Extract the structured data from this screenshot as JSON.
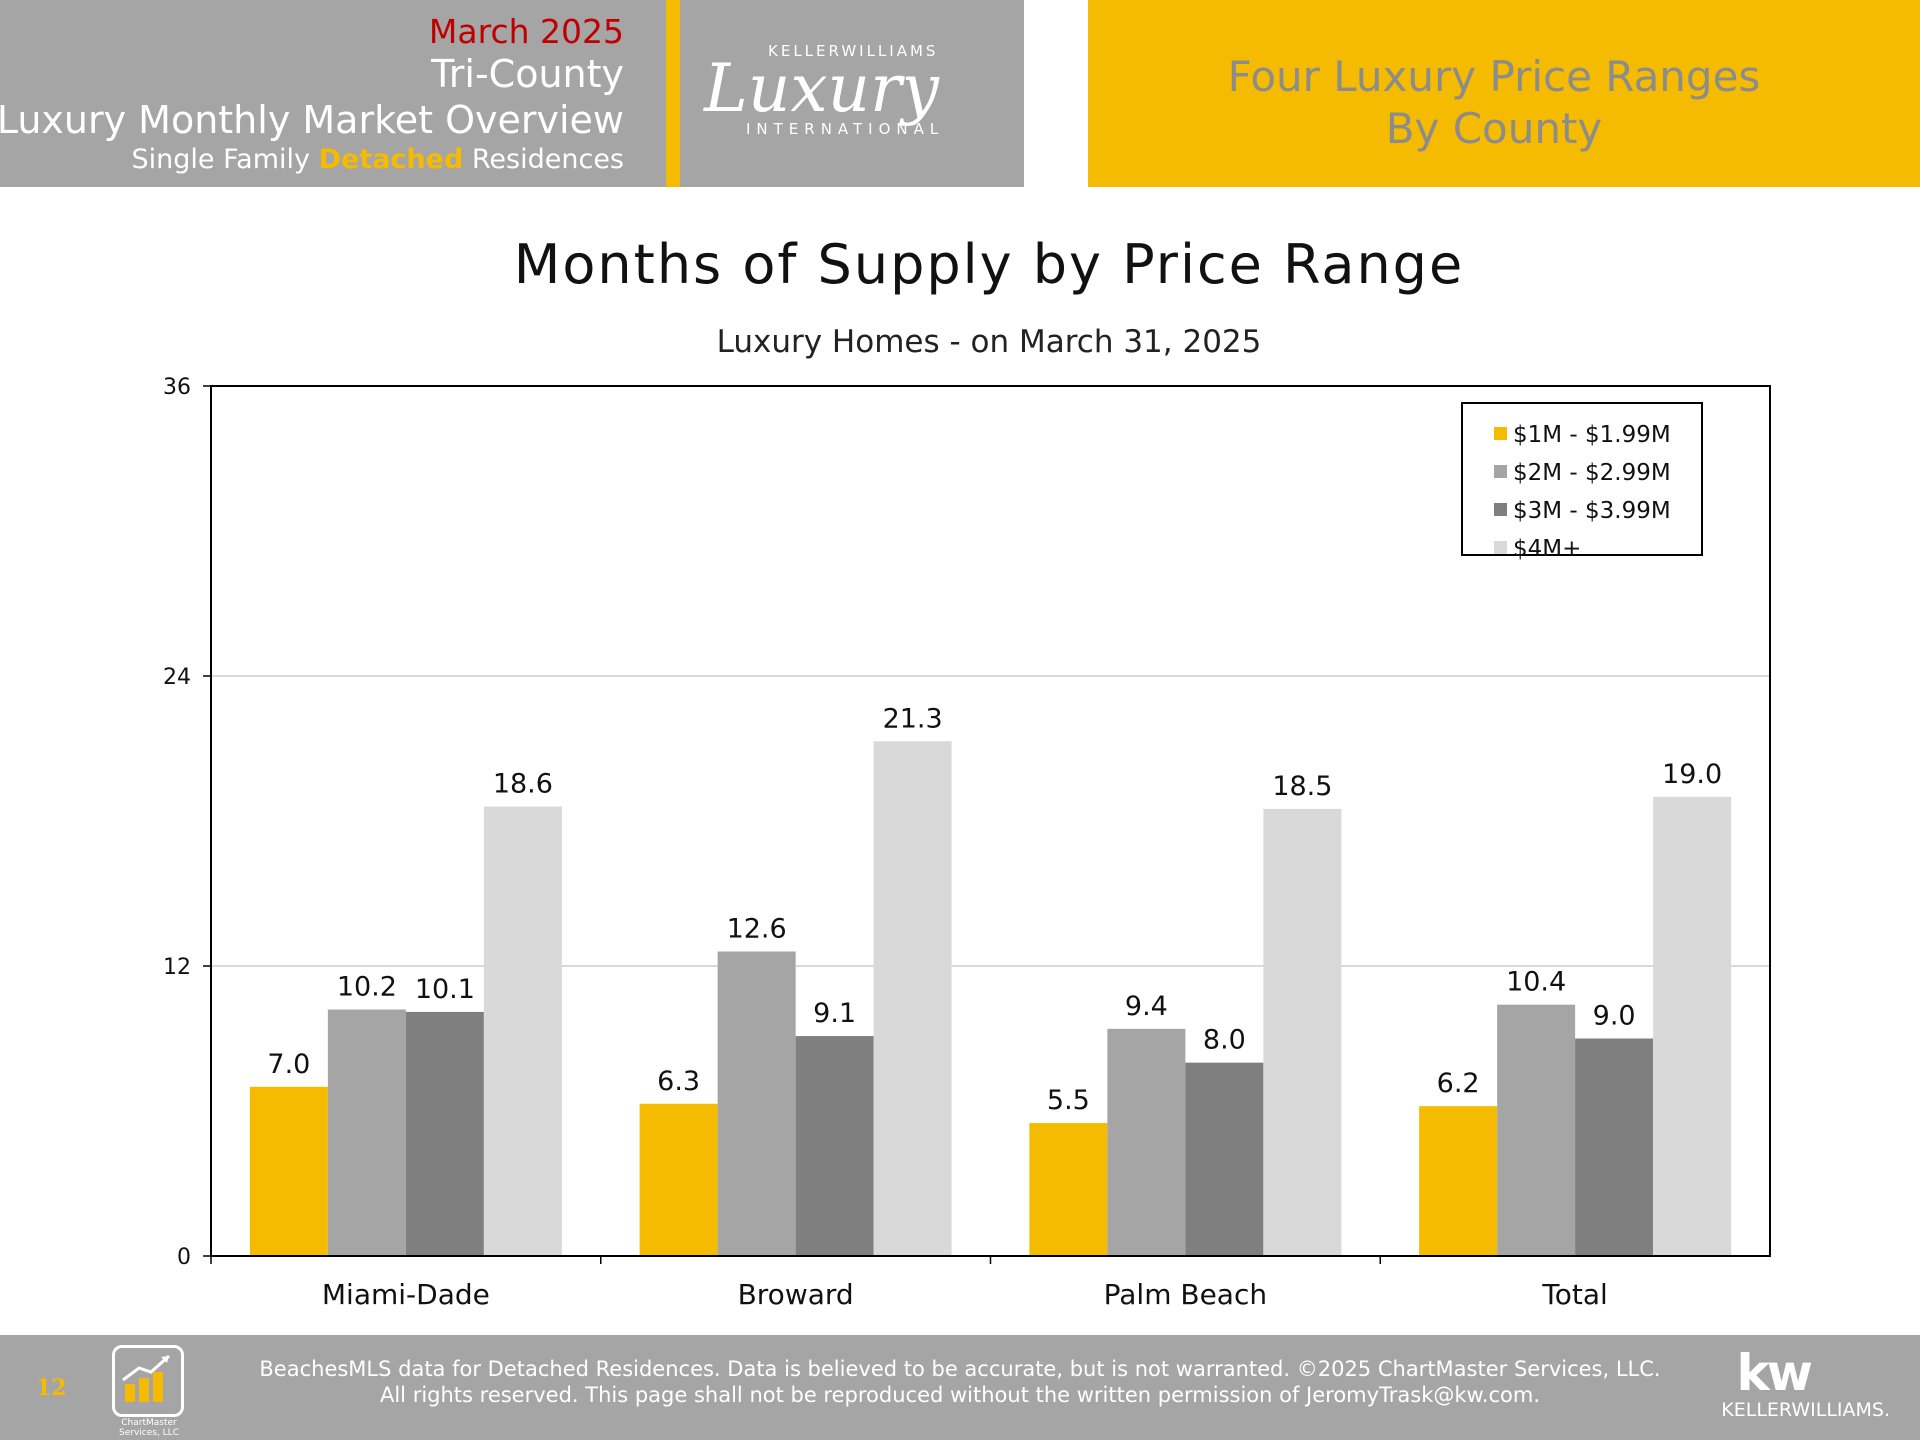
{
  "header": {
    "date": "March 2025",
    "region": "Tri-County",
    "title": "Luxury Monthly Market Overview",
    "subtitle_pre": "Single Family ",
    "subtitle_highlight": "Detached",
    "subtitle_post": " Residences",
    "right_line1": "Four Luxury Price Ranges",
    "right_line2": "By County"
  },
  "logo": {
    "brand": "KELLERWILLIAMS",
    "script": "Luxury",
    "sub": "INTERNATIONAL"
  },
  "chart_data": {
    "type": "bar",
    "title": "Months of Supply by Price Range",
    "subtitle": "Luxury Homes - on March 31, 2025",
    "categories": [
      "Miami-Dade",
      "Broward",
      "Palm Beach",
      "Total"
    ],
    "series": [
      {
        "name": "$1M - $1.99M",
        "color": "#f5bb00",
        "values": [
          7.0,
          6.3,
          5.5,
          6.2
        ]
      },
      {
        "name": "$2M - $2.99M",
        "color": "#a5a5a5",
        "values": [
          10.2,
          12.6,
          9.4,
          10.4
        ]
      },
      {
        "name": "$3M - $3.99M",
        "color": "#7f7f7f",
        "values": [
          10.1,
          9.1,
          8.0,
          9.0
        ]
      },
      {
        "name": "$4M+",
        "color": "#d9d9d9",
        "values": [
          18.6,
          21.3,
          18.5,
          19.0
        ]
      }
    ],
    "ylim": [
      0,
      36
    ],
    "yticks": [
      0,
      12,
      24,
      36
    ],
    "grid": true,
    "legend_position": "top-right",
    "xlabel": "",
    "ylabel": ""
  },
  "footer": {
    "page_number": "12",
    "line1": "BeachesMLS data for Detached Residences.  Data is believed to be accurate, but is not warranted.   ©2025  ChartMaster Services, LLC.",
    "line2": "All rights reserved. This page shall not be reproduced without the written permission of JeromyTrask@kw.com.",
    "chartmaster_caption": "ChartMaster Services, LLC",
    "kw_mark": "kw",
    "kw_name": "KELLERWILLIAMS."
  }
}
